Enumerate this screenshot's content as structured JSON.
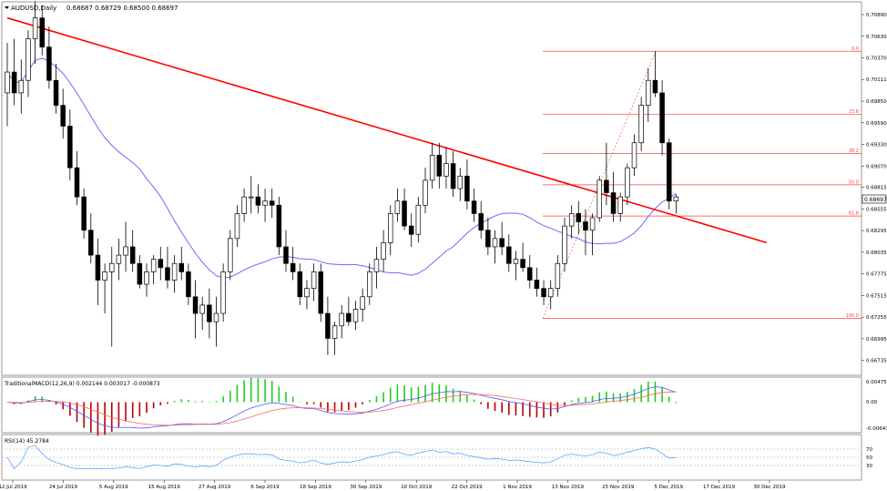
{
  "header": {
    "symbol": "AUDUSD,Daily",
    "ohlc": "0.68687 0.68729 0.68500 0.68697"
  },
  "price_axis": {
    "labels": [
      "0.70890",
      "0.70630",
      "0.70370",
      "0.70111",
      "0.69850",
      "0.69590",
      "0.69330",
      "0.69070",
      "0.68815",
      "0.68555",
      "0.68295",
      "0.68035",
      "0.67775",
      "0.67515",
      "0.67255",
      "0.66995",
      "0.66735"
    ],
    "current_price": "0.68697"
  },
  "date_axis": {
    "labels": [
      "12 Jul 2019",
      "24 Jul 2019",
      "5 Aug 2019",
      "15 Aug 2019",
      "27 Aug 2019",
      "6 Sep 2019",
      "18 Sep 2019",
      "30 Sep 2019",
      "10 Oct 2019",
      "22 Oct 2019",
      "1 Nov 2019",
      "13 Nov 2019",
      "25 Nov 2019",
      "5 Dec 2019",
      "17 Dec 2019",
      "30 Dec 2019"
    ]
  },
  "fib": {
    "levels": [
      {
        "label": "0.0",
        "price": 0.7045
      },
      {
        "label": "23.6",
        "price": 0.6969
      },
      {
        "label": "38.2",
        "price": 0.6922
      },
      {
        "label": "50.0",
        "price": 0.68845
      },
      {
        "label": "61.8",
        "price": 0.6847
      },
      {
        "label": "100.0",
        "price": 0.6724
      }
    ]
  },
  "macd": {
    "title": "TraditionalMACD(12,26,9) 0.002144 0.003017 -0.000873",
    "labels": [
      "0.004758",
      "0.00",
      "-0.006431"
    ]
  },
  "rsi": {
    "title": "RSI(14) 45.2784",
    "labels": [
      "70",
      "50",
      "30"
    ]
  },
  "colors": {
    "trendline": "#ff0000",
    "moving_average": "#6b6bff",
    "fib": "#ff4040",
    "macd_positive": "#22cc22",
    "macd_negative": "#bb0000",
    "signal": "#ff6666",
    "rsi": "#55aaff",
    "candle": "#000000"
  },
  "chart_data": {
    "type": "candlestick",
    "symbol": "AUDUSD",
    "timeframe": "Daily",
    "ylim": [
      0.666,
      0.71
    ],
    "candles": [
      [
        0.6995,
        0.7055,
        0.6955,
        0.702
      ],
      [
        0.702,
        0.706,
        0.698,
        0.6995
      ],
      [
        0.6995,
        0.7035,
        0.697,
        0.701
      ],
      [
        0.701,
        0.707,
        0.699,
        0.706
      ],
      [
        0.706,
        0.7105,
        0.703,
        0.7085
      ],
      [
        0.7085,
        0.71,
        0.704,
        0.705
      ],
      [
        0.705,
        0.7075,
        0.7,
        0.701
      ],
      [
        0.701,
        0.703,
        0.697,
        0.698
      ],
      [
        0.698,
        0.7,
        0.694,
        0.6955
      ],
      [
        0.6955,
        0.6975,
        0.689,
        0.6905
      ],
      [
        0.6905,
        0.6925,
        0.686,
        0.687
      ],
      [
        0.687,
        0.688,
        0.682,
        0.683
      ],
      [
        0.683,
        0.685,
        0.679,
        0.68
      ],
      [
        0.68,
        0.682,
        0.674,
        0.677
      ],
      [
        0.677,
        0.679,
        0.673,
        0.678
      ],
      [
        0.678,
        0.681,
        0.669,
        0.679
      ],
      [
        0.679,
        0.682,
        0.677,
        0.68
      ],
      [
        0.68,
        0.684,
        0.678,
        0.681
      ],
      [
        0.681,
        0.683,
        0.678,
        0.679
      ],
      [
        0.679,
        0.68,
        0.676,
        0.6765
      ],
      [
        0.6765,
        0.679,
        0.675,
        0.678
      ],
      [
        0.678,
        0.68,
        0.6765,
        0.6795
      ],
      [
        0.6795,
        0.681,
        0.677,
        0.6785
      ],
      [
        0.6785,
        0.681,
        0.676,
        0.677
      ],
      [
        0.677,
        0.68,
        0.6755,
        0.679
      ],
      [
        0.679,
        0.681,
        0.677,
        0.678
      ],
      [
        0.678,
        0.679,
        0.674,
        0.675
      ],
      [
        0.675,
        0.677,
        0.67,
        0.673
      ],
      [
        0.673,
        0.675,
        0.671,
        0.674
      ],
      [
        0.674,
        0.676,
        0.67,
        0.672
      ],
      [
        0.672,
        0.675,
        0.669,
        0.673
      ],
      [
        0.673,
        0.679,
        0.672,
        0.678
      ],
      [
        0.678,
        0.683,
        0.677,
        0.682
      ],
      [
        0.682,
        0.686,
        0.681,
        0.685
      ],
      [
        0.685,
        0.688,
        0.684,
        0.687
      ],
      [
        0.687,
        0.6895,
        0.685,
        0.687
      ],
      [
        0.687,
        0.6885,
        0.685,
        0.686
      ],
      [
        0.686,
        0.688,
        0.684,
        0.6865
      ],
      [
        0.6865,
        0.688,
        0.6845,
        0.686
      ],
      [
        0.686,
        0.687,
        0.68,
        0.681
      ],
      [
        0.681,
        0.683,
        0.678,
        0.679
      ],
      [
        0.679,
        0.681,
        0.677,
        0.678
      ],
      [
        0.678,
        0.679,
        0.674,
        0.675
      ],
      [
        0.675,
        0.677,
        0.6735,
        0.676
      ],
      [
        0.676,
        0.679,
        0.6745,
        0.678
      ],
      [
        0.678,
        0.679,
        0.672,
        0.673
      ],
      [
        0.673,
        0.675,
        0.668,
        0.67
      ],
      [
        0.67,
        0.672,
        0.668,
        0.6715
      ],
      [
        0.6715,
        0.674,
        0.67,
        0.673
      ],
      [
        0.673,
        0.675,
        0.6715,
        0.672
      ],
      [
        0.672,
        0.6745,
        0.671,
        0.6735
      ],
      [
        0.6735,
        0.676,
        0.672,
        0.675
      ],
      [
        0.675,
        0.679,
        0.674,
        0.678
      ],
      [
        0.678,
        0.681,
        0.676,
        0.6795
      ],
      [
        0.6795,
        0.683,
        0.678,
        0.6815
      ],
      [
        0.6815,
        0.686,
        0.68,
        0.685
      ],
      [
        0.685,
        0.688,
        0.684,
        0.6865
      ],
      [
        0.6865,
        0.688,
        0.683,
        0.6835
      ],
      [
        0.6835,
        0.685,
        0.681,
        0.6825
      ],
      [
        0.6825,
        0.687,
        0.6815,
        0.686
      ],
      [
        0.686,
        0.6905,
        0.685,
        0.689
      ],
      [
        0.689,
        0.6935,
        0.688,
        0.692
      ],
      [
        0.692,
        0.6935,
        0.688,
        0.6895
      ],
      [
        0.6895,
        0.693,
        0.688,
        0.691
      ],
      [
        0.691,
        0.6925,
        0.687,
        0.688
      ],
      [
        0.688,
        0.6905,
        0.6865,
        0.6895
      ],
      [
        0.6895,
        0.6915,
        0.6855,
        0.6865
      ],
      [
        0.6865,
        0.688,
        0.684,
        0.685
      ],
      [
        0.685,
        0.6865,
        0.682,
        0.683
      ],
      [
        0.683,
        0.6845,
        0.68,
        0.681
      ],
      [
        0.681,
        0.683,
        0.679,
        0.682
      ],
      [
        0.682,
        0.684,
        0.68,
        0.681
      ],
      [
        0.681,
        0.6825,
        0.678,
        0.679
      ],
      [
        0.679,
        0.6805,
        0.677,
        0.6795
      ],
      [
        0.6795,
        0.6815,
        0.678,
        0.6785
      ],
      [
        0.6785,
        0.68,
        0.676,
        0.677
      ],
      [
        0.677,
        0.6785,
        0.675,
        0.676
      ],
      [
        0.676,
        0.677,
        0.674,
        0.675
      ],
      [
        0.675,
        0.677,
        0.6735,
        0.676
      ],
      [
        0.676,
        0.68,
        0.675,
        0.679
      ],
      [
        0.679,
        0.6845,
        0.678,
        0.6835
      ],
      [
        0.6835,
        0.686,
        0.682,
        0.685
      ],
      [
        0.685,
        0.6865,
        0.6825,
        0.684
      ],
      [
        0.684,
        0.6855,
        0.68,
        0.683
      ],
      [
        0.683,
        0.685,
        0.68,
        0.6845
      ],
      [
        0.6845,
        0.6895,
        0.684,
        0.689
      ],
      [
        0.689,
        0.6935,
        0.686,
        0.6875
      ],
      [
        0.6875,
        0.69,
        0.684,
        0.685
      ],
      [
        0.685,
        0.6875,
        0.684,
        0.687
      ],
      [
        0.687,
        0.691,
        0.686,
        0.6905
      ],
      [
        0.6905,
        0.6945,
        0.6895,
        0.6935
      ],
      [
        0.6935,
        0.699,
        0.6925,
        0.698
      ],
      [
        0.698,
        0.7025,
        0.696,
        0.701
      ],
      [
        0.701,
        0.7045,
        0.699,
        0.6995
      ],
      [
        0.6995,
        0.701,
        0.692,
        0.6935
      ],
      [
        0.6935,
        0.694,
        0.6855,
        0.6865
      ],
      [
        0.6865,
        0.6873,
        0.685,
        0.687
      ]
    ],
    "trendline": {
      "start": [
        0,
        0.7085
      ],
      "end": [
        109,
        0.6815
      ]
    },
    "annotations": [
      "Fibonacci retracement 0.0 / 23.6 / 38.2 / 50.0 / 61.8 / 100.0"
    ]
  }
}
